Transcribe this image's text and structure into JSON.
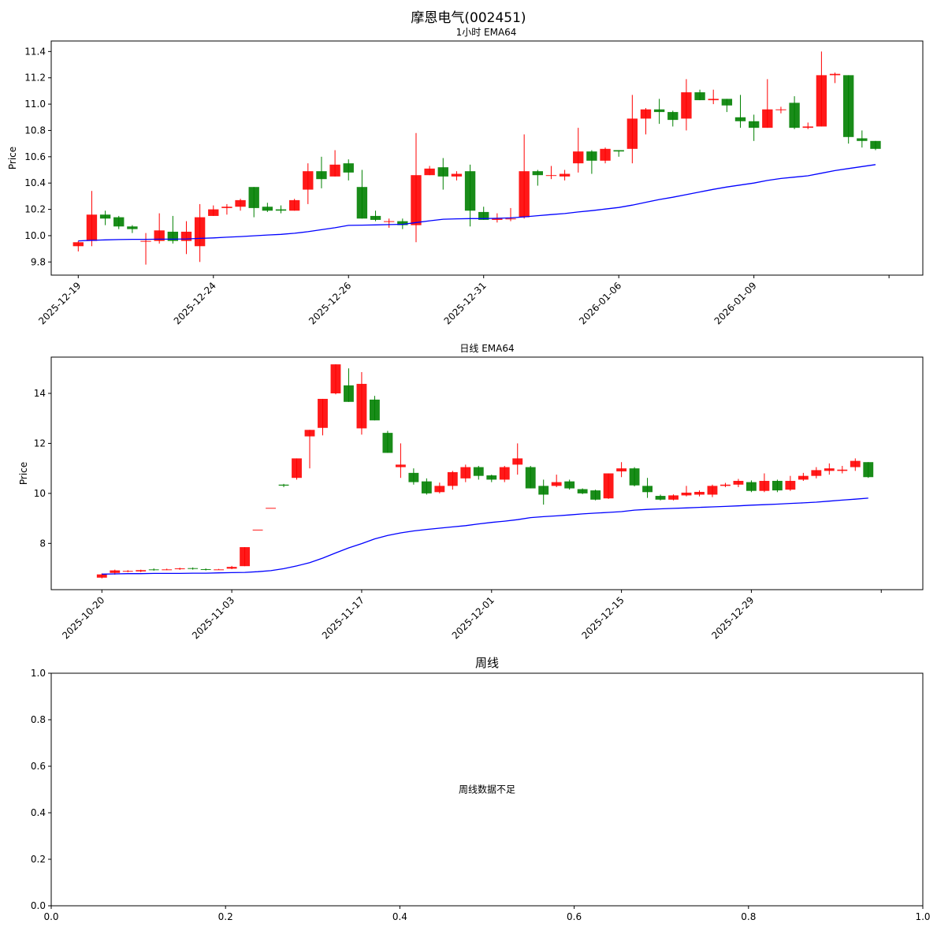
{
  "figure": {
    "suptitle": "摩恩电气(002451)"
  },
  "chart_data": [
    {
      "type": "candlestick",
      "title": "1小时 EMA64",
      "ylabel": "Price",
      "ylim": [
        9.7,
        11.48
      ],
      "yticks": [
        9.8,
        10.0,
        10.2,
        10.4,
        10.6,
        10.8,
        11.0,
        11.2,
        11.4
      ],
      "xlim": [
        -2.0,
        62.5
      ],
      "xticks": [
        {
          "i": 0,
          "label": "2025-12-19"
        },
        {
          "i": 10,
          "label": "2025-12-24"
        },
        {
          "i": 20,
          "label": "2025-12-26"
        },
        {
          "i": 30,
          "label": "2025-12-31"
        },
        {
          "i": 40,
          "label": "2026-01-06"
        },
        {
          "i": 50,
          "label": "2026-01-09"
        },
        {
          "i": 60,
          "label": ""
        }
      ],
      "up_color": "#ff0000",
      "down_color": "#008000",
      "ema_color": "#0000ff",
      "candles": [
        [
          9.92,
          9.95,
          9.88,
          9.96
        ],
        [
          9.96,
          10.16,
          9.92,
          10.34
        ],
        [
          10.16,
          10.13,
          10.08,
          10.19
        ],
        [
          10.14,
          10.07,
          10.05,
          10.15
        ],
        [
          10.07,
          10.05,
          10.02,
          10.08
        ],
        [
          9.96,
          9.96,
          9.78,
          10.02
        ],
        [
          9.96,
          10.04,
          9.94,
          10.17
        ],
        [
          10.03,
          9.96,
          9.94,
          10.15
        ],
        [
          9.96,
          10.03,
          9.86,
          10.11
        ],
        [
          9.92,
          10.14,
          9.8,
          10.24
        ],
        [
          10.15,
          10.2,
          10.15,
          10.23
        ],
        [
          10.21,
          10.22,
          10.16,
          10.24
        ],
        [
          10.22,
          10.27,
          10.19,
          10.28
        ],
        [
          10.37,
          10.21,
          10.14,
          10.37
        ],
        [
          10.22,
          10.19,
          10.18,
          10.25
        ],
        [
          10.2,
          10.19,
          10.17,
          10.23
        ],
        [
          10.19,
          10.27,
          10.19,
          10.28
        ],
        [
          10.35,
          10.49,
          10.24,
          10.55
        ],
        [
          10.49,
          10.43,
          10.36,
          10.6
        ],
        [
          10.45,
          10.54,
          10.45,
          10.65
        ],
        [
          10.55,
          10.48,
          10.42,
          10.58
        ],
        [
          10.37,
          10.13,
          10.13,
          10.5
        ],
        [
          10.15,
          10.12,
          10.11,
          10.19
        ],
        [
          10.11,
          10.11,
          10.06,
          10.13
        ],
        [
          10.11,
          10.08,
          10.05,
          10.13
        ],
        [
          10.08,
          10.46,
          9.95,
          10.78
        ],
        [
          10.46,
          10.51,
          10.46,
          10.53
        ],
        [
          10.52,
          10.45,
          10.35,
          10.59
        ],
        [
          10.45,
          10.47,
          10.42,
          10.49
        ],
        [
          10.49,
          10.19,
          10.07,
          10.54
        ],
        [
          10.18,
          10.12,
          10.12,
          10.22
        ],
        [
          10.12,
          10.13,
          10.1,
          10.17
        ],
        [
          10.13,
          10.13,
          10.11,
          10.21
        ],
        [
          10.14,
          10.49,
          10.13,
          10.77
        ],
        [
          10.49,
          10.46,
          10.38,
          10.5
        ],
        [
          10.46,
          10.46,
          10.43,
          10.53
        ],
        [
          10.45,
          10.47,
          10.42,
          10.5
        ],
        [
          10.55,
          10.64,
          10.48,
          10.82
        ],
        [
          10.64,
          10.57,
          10.47,
          10.65
        ],
        [
          10.57,
          10.66,
          10.55,
          10.67
        ],
        [
          10.65,
          10.64,
          10.6,
          10.65
        ],
        [
          10.66,
          10.89,
          10.55,
          11.07
        ],
        [
          10.89,
          10.96,
          10.77,
          10.97
        ],
        [
          10.96,
          10.94,
          10.85,
          11.04
        ],
        [
          10.94,
          10.88,
          10.83,
          10.95
        ],
        [
          10.89,
          11.09,
          10.8,
          11.19
        ],
        [
          11.09,
          11.03,
          11.03,
          11.11
        ],
        [
          11.03,
          11.04,
          11.0,
          11.11
        ],
        [
          11.04,
          10.99,
          10.94,
          11.04
        ],
        [
          10.9,
          10.87,
          10.82,
          11.07
        ],
        [
          10.87,
          10.82,
          10.72,
          10.92
        ],
        [
          10.82,
          10.96,
          10.82,
          11.19
        ],
        [
          10.96,
          10.96,
          10.93,
          10.98
        ],
        [
          11.01,
          10.82,
          10.81,
          11.06
        ],
        [
          10.82,
          10.83,
          10.81,
          10.86
        ],
        [
          10.83,
          11.22,
          10.83,
          11.4
        ],
        [
          11.22,
          11.23,
          11.16,
          11.24
        ],
        [
          11.22,
          10.75,
          10.7,
          11.22
        ],
        [
          10.74,
          10.72,
          10.67,
          10.8
        ],
        [
          10.72,
          10.66,
          10.65,
          10.72
        ]
      ],
      "ema": [
        9.96,
        9.965,
        9.968,
        9.97,
        9.972,
        9.972,
        9.973,
        9.973,
        9.975,
        9.979,
        9.983,
        9.988,
        9.993,
        9.999,
        10.005,
        10.01,
        10.018,
        10.03,
        10.045,
        10.06,
        10.078,
        10.08,
        10.082,
        10.084,
        10.086,
        10.1,
        10.113,
        10.125,
        10.128,
        10.13,
        10.13,
        10.132,
        10.135,
        10.143,
        10.152,
        10.16,
        10.168,
        10.18,
        10.19,
        10.202,
        10.214,
        10.232,
        10.254,
        10.275,
        10.292,
        10.312,
        10.332,
        10.352,
        10.37,
        10.385,
        10.4,
        10.42,
        10.435,
        10.445,
        10.455,
        10.475,
        10.495,
        10.51,
        10.525,
        10.54
      ]
    },
    {
      "type": "candlestick",
      "title": "日线 EMA64",
      "ylabel": "Price",
      "ylim": [
        6.15,
        15.45
      ],
      "yticks": [
        8,
        10,
        12,
        14
      ],
      "xlim": [
        -3.9,
        63.2
      ],
      "xticks": [
        {
          "i": 0,
          "label": "2025-10-20"
        },
        {
          "i": 10,
          "label": "2025-11-03"
        },
        {
          "i": 20,
          "label": "2025-11-17"
        },
        {
          "i": 30,
          "label": "2025-12-01"
        },
        {
          "i": 40,
          "label": "2025-12-15"
        },
        {
          "i": 50,
          "label": "2025-12-29"
        },
        {
          "i": 60,
          "label": ""
        }
      ],
      "up_color": "#ff0000",
      "down_color": "#008000",
      "ema_color": "#0000ff",
      "candles": [
        [
          6.63,
          6.76,
          6.6,
          6.8
        ],
        [
          6.82,
          6.92,
          6.75,
          6.95
        ],
        [
          6.88,
          6.9,
          6.85,
          6.93
        ],
        [
          6.88,
          6.93,
          6.85,
          6.95
        ],
        [
          6.96,
          6.95,
          6.91,
          7.0
        ],
        [
          6.96,
          6.96,
          6.93,
          6.99
        ],
        [
          6.97,
          7.0,
          6.94,
          7.03
        ],
        [
          7.01,
          6.98,
          6.95,
          7.04
        ],
        [
          6.97,
          6.95,
          6.92,
          7.0
        ],
        [
          6.96,
          6.96,
          6.94,
          6.98
        ],
        [
          6.99,
          7.06,
          6.97,
          7.1
        ],
        [
          7.09,
          7.85,
          7.09,
          7.85
        ],
        [
          8.55,
          8.55,
          8.55,
          8.55
        ],
        [
          9.42,
          9.42,
          9.42,
          9.42
        ],
        [
          10.35,
          10.31,
          10.25,
          10.38
        ],
        [
          10.62,
          11.4,
          10.55,
          11.4
        ],
        [
          12.28,
          12.54,
          11.0,
          12.54
        ],
        [
          12.62,
          13.78,
          12.32,
          13.78
        ],
        [
          14.0,
          15.16,
          13.96,
          15.16
        ],
        [
          14.32,
          13.66,
          13.66,
          15.0
        ],
        [
          12.6,
          14.38,
          12.35,
          14.85
        ],
        [
          13.75,
          12.92,
          12.92,
          13.9
        ],
        [
          12.42,
          11.62,
          11.62,
          12.5
        ],
        [
          11.05,
          11.15,
          10.62,
          12.0
        ],
        [
          10.82,
          10.45,
          10.35,
          11.0
        ],
        [
          10.48,
          10.0,
          9.95,
          10.6
        ],
        [
          10.05,
          10.3,
          10.0,
          10.43
        ],
        [
          10.3,
          10.85,
          10.15,
          10.9
        ],
        [
          10.6,
          11.05,
          10.45,
          11.15
        ],
        [
          11.05,
          10.7,
          10.55,
          11.1
        ],
        [
          10.72,
          10.55,
          10.45,
          10.75
        ],
        [
          10.55,
          11.05,
          10.45,
          11.1
        ],
        [
          11.15,
          11.4,
          10.75,
          12.0
        ],
        [
          11.05,
          10.2,
          10.2,
          11.1
        ],
        [
          10.3,
          9.95,
          9.55,
          10.55
        ],
        [
          10.3,
          10.45,
          10.25,
          10.75
        ],
        [
          10.48,
          10.2,
          10.15,
          10.55
        ],
        [
          10.17,
          10.0,
          9.97,
          10.2
        ],
        [
          10.12,
          9.75,
          9.72,
          10.15
        ],
        [
          9.8,
          10.8,
          9.78,
          10.8
        ],
        [
          10.88,
          11.0,
          10.65,
          11.25
        ],
        [
          11.0,
          10.32,
          10.28,
          11.05
        ],
        [
          10.3,
          10.05,
          9.82,
          10.62
        ],
        [
          9.9,
          9.75,
          9.72,
          9.95
        ],
        [
          9.75,
          9.92,
          9.72,
          9.96
        ],
        [
          9.92,
          10.03,
          9.88,
          10.3
        ],
        [
          9.95,
          10.06,
          9.88,
          10.12
        ],
        [
          9.95,
          10.3,
          9.85,
          10.35
        ],
        [
          10.3,
          10.35,
          10.25,
          10.42
        ],
        [
          10.35,
          10.5,
          10.25,
          10.58
        ],
        [
          10.45,
          10.1,
          10.05,
          10.52
        ],
        [
          10.1,
          10.5,
          10.05,
          10.8
        ],
        [
          10.5,
          10.12,
          10.05,
          10.55
        ],
        [
          10.15,
          10.5,
          10.1,
          10.7
        ],
        [
          10.55,
          10.7,
          10.5,
          10.82
        ],
        [
          10.7,
          10.93,
          10.6,
          11.05
        ],
        [
          10.9,
          11.0,
          10.75,
          11.2
        ],
        [
          10.9,
          10.95,
          10.8,
          11.1
        ],
        [
          11.05,
          11.3,
          10.9,
          11.4
        ],
        [
          11.25,
          10.65,
          10.62,
          11.25
        ]
      ],
      "ema": [
        6.77,
        6.78,
        6.79,
        6.79,
        6.8,
        6.8,
        6.8,
        6.81,
        6.81,
        6.82,
        6.83,
        6.84,
        6.87,
        6.91,
        6.99,
        7.1,
        7.23,
        7.41,
        7.62,
        7.82,
        7.99,
        8.18,
        8.32,
        8.42,
        8.5,
        8.56,
        8.61,
        8.66,
        8.71,
        8.78,
        8.84,
        8.89,
        8.95,
        9.03,
        9.07,
        9.1,
        9.14,
        9.18,
        9.21,
        9.24,
        9.27,
        9.33,
        9.36,
        9.38,
        9.4,
        9.42,
        9.44,
        9.46,
        9.48,
        9.5,
        9.53,
        9.55,
        9.57,
        9.6,
        9.62,
        9.65,
        9.69,
        9.73,
        9.77,
        9.81
      ]
    },
    {
      "type": "text",
      "title": "周线",
      "message": "周线数据不足",
      "xlim": [
        0,
        1
      ],
      "ylim": [
        0,
        1
      ],
      "xticks": [
        "0.0",
        "0.2",
        "0.4",
        "0.6",
        "0.8",
        "1.0"
      ],
      "yticks": [
        "0.0",
        "0.2",
        "0.4",
        "0.6",
        "0.8",
        "1.0"
      ]
    }
  ]
}
